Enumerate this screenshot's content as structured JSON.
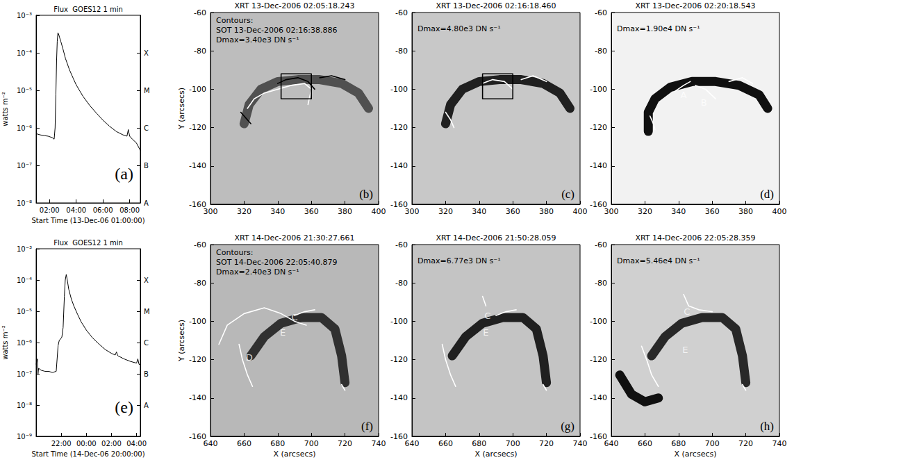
{
  "chart_data": [
    {
      "type": "line",
      "title": "Flux  GOES12 1 min",
      "panel": "(a)",
      "ylabel": "watts m⁻²",
      "xlabel": "Start Time (13-Dec-06 01:00:00)",
      "log": "y",
      "color": "#000000",
      "x": [
        1.0,
        1.3,
        1.6,
        1.9,
        2.2,
        2.35,
        2.42,
        2.48,
        2.53,
        2.58,
        2.63,
        2.68,
        2.75,
        2.85,
        3.0,
        3.2,
        3.5,
        3.8,
        4.0,
        4.5,
        5.0,
        5.5,
        6.0,
        6.5,
        7.0,
        7.5,
        7.8,
        7.9,
        8.0,
        8.2,
        8.5,
        8.8
      ],
      "values": [
        7e-07,
        6.5e-07,
        6.2e-07,
        6e-07,
        5.5e-07,
        5e-07,
        1e-06,
        8e-06,
        6e-05,
        0.0002,
        0.00034,
        0.00032,
        0.00026,
        0.0002,
        0.00013,
        7e-05,
        3.5e-05,
        2e-05,
        1.4e-05,
        7e-06,
        4e-06,
        2.5e-06,
        1.6e-06,
        1.1e-06,
        8e-07,
        6.5e-07,
        6e-07,
        9e-07,
        6e-07,
        5e-07,
        4e-07,
        2.5e-07
      ],
      "xlim": [
        1.0,
        8.8
      ],
      "xticks": [
        {
          "value": 2,
          "label": "02:00"
        },
        {
          "value": 4,
          "label": "04:00"
        },
        {
          "value": 6,
          "label": "06:00"
        },
        {
          "value": 8,
          "label": "08:00"
        }
      ],
      "ylim": [
        1e-08,
        0.001
      ],
      "yticks": [
        {
          "value": 1e-08,
          "label": "10⁻⁸"
        },
        {
          "value": 1e-07,
          "label": "10⁻⁷"
        },
        {
          "value": 1e-06,
          "label": "10⁻⁶"
        },
        {
          "value": 1e-05,
          "label": "10⁻⁵"
        },
        {
          "value": 0.0001,
          "label": "10⁻⁴"
        },
        {
          "value": 0.001,
          "label": "10⁻³"
        }
      ],
      "y2lim": [
        1e-08,
        0.001
      ],
      "y2ticks": [
        {
          "value": 1e-08,
          "label": "A"
        },
        {
          "value": 1e-07,
          "label": "B"
        },
        {
          "value": 1e-06,
          "label": "C"
        },
        {
          "value": 1e-05,
          "label": "M"
        },
        {
          "value": 0.0001,
          "label": "X"
        }
      ]
    },
    {
      "type": "image",
      "title": "XRT 13-Dec-2006 02:05:18.243",
      "panel": "(b)",
      "ylabel": "Y (arcsecs)",
      "annotations": [
        "Contours:",
        "SOT 13-Dec-2006 02:16:38.886",
        "Dmax=3.40e3 DN s⁻¹"
      ],
      "color": "#bdbdbd",
      "xlim": [
        300,
        400
      ],
      "xticks": [
        300,
        320,
        340,
        360,
        380,
        400
      ],
      "ylim": [
        -160,
        -60
      ],
      "yticks": [
        -160,
        -140,
        -120,
        -100,
        -80,
        -60
      ],
      "overlays": [
        {
          "type": "line",
          "line_style": "band",
          "color": "#505050",
          "x": [
            320,
            323,
            330,
            340,
            352,
            365,
            378,
            388,
            394
          ],
          "y": [
            -118,
            -108,
            -100,
            -96,
            -95,
            -95,
            -97,
            -102,
            -110
          ]
        },
        {
          "type": "line",
          "line_style": "solid",
          "color": "#ffffff",
          "x": [
            322,
            326,
            332,
            340,
            348,
            356,
            360,
            358
          ],
          "y": [
            -110,
            -105,
            -102,
            -100,
            -98,
            -97,
            -100,
            -108
          ]
        },
        {
          "type": "line",
          "line_style": "solid",
          "color": "#000000",
          "x": [
            340,
            345,
            352,
            358,
            362
          ],
          "y": [
            -97,
            -95,
            -94,
            -96,
            -100
          ]
        },
        {
          "type": "line",
          "line_style": "solid",
          "color": "#000000",
          "x": [
            365,
            372,
            380
          ],
          "y": [
            -94,
            -93,
            -95
          ]
        },
        {
          "type": "line",
          "line_style": "solid",
          "color": "#000000",
          "x": [
            318,
            322,
            324
          ],
          "y": [
            -112,
            -116,
            -118
          ]
        },
        {
          "type": "line",
          "line_style": "solid",
          "color": "#000000",
          "x": [
            342,
            360,
            360,
            342,
            342
          ],
          "y": [
            -105,
            -105,
            -92,
            -92,
            -105
          ]
        }
      ],
      "labels": []
    },
    {
      "type": "image",
      "title": "XRT 13-Dec-2006 02:16:18.460",
      "panel": "(c)",
      "annotations": [
        "Dmax=4.80e3 DN s⁻¹"
      ],
      "color": "#c8c8c8",
      "xlim": [
        300,
        400
      ],
      "xticks": [
        300,
        320,
        340,
        360,
        380,
        400
      ],
      "ylim": [
        -160,
        -60
      ],
      "yticks": [
        -160,
        -140,
        -120,
        -100,
        -80,
        -60
      ],
      "overlays": [
        {
          "type": "line",
          "line_style": "band",
          "color": "#202020",
          "x": [
            320,
            323,
            330,
            340,
            352,
            365,
            378,
            388,
            394
          ],
          "y": [
            -118,
            -108,
            -100,
            -96,
            -95,
            -95,
            -97,
            -102,
            -110
          ]
        },
        {
          "type": "line",
          "line_style": "solid",
          "color": "#ffffff",
          "x": [
            320,
            323,
            325
          ],
          "y": [
            -112,
            -116,
            -120
          ]
        },
        {
          "type": "line",
          "line_style": "solid",
          "color": "#ffffff",
          "x": [
            342,
            348,
            355,
            360
          ],
          "y": [
            -97,
            -95,
            -96,
            -100
          ]
        },
        {
          "type": "line",
          "line_style": "solid",
          "color": "#ffffff",
          "x": [
            365,
            372,
            380
          ],
          "y": [
            -95,
            -93,
            -96
          ]
        },
        {
          "type": "line",
          "line_style": "solid",
          "color": "#000000",
          "x": [
            342,
            360,
            360,
            342,
            342
          ],
          "y": [
            -105,
            -105,
            -92,
            -92,
            -105
          ]
        }
      ],
      "labels": []
    },
    {
      "type": "image",
      "title": "XRT 13-Dec-2006 02:20:18.543",
      "panel": "(d)",
      "annotations": [
        "Dmax=1.90e4 DN s⁻¹"
      ],
      "color": "#f2f2f2",
      "xlim": [
        300,
        400
      ],
      "xticks": [
        300,
        320,
        340,
        360,
        380,
        400
      ],
      "ylim": [
        -160,
        -60
      ],
      "yticks": [
        -160,
        -140,
        -120,
        -100,
        -80,
        -60
      ],
      "overlays": [
        {
          "type": "line",
          "line_style": "band",
          "color": "#101010",
          "x": [
            322,
            322,
            326,
            335,
            348,
            362,
            376,
            388,
            393
          ],
          "y": [
            -122,
            -112,
            -105,
            -99,
            -96,
            -96,
            -98,
            -103,
            -110
          ]
        },
        {
          "type": "line",
          "line_style": "solid",
          "color": "#ffffff",
          "x": [
            338,
            343,
            347
          ],
          "y": [
            -101,
            -98,
            -96
          ]
        },
        {
          "type": "line",
          "line_style": "solid",
          "color": "#ffffff",
          "x": [
            350,
            356,
            362
          ],
          "y": [
            -98,
            -100,
            -105
          ]
        },
        {
          "type": "line",
          "line_style": "solid",
          "color": "#ffffff",
          "x": [
            323,
            325,
            326
          ],
          "y": [
            -114,
            -118,
            -121
          ]
        },
        {
          "type": "line",
          "line_style": "solid",
          "color": "#ffffff",
          "x": [
            370,
            378,
            384
          ],
          "y": [
            -96,
            -94,
            -97
          ]
        }
      ],
      "labels": [
        {
          "text": "A",
          "x": 343,
          "y": -103
        },
        {
          "text": "B",
          "x": 355,
          "y": -107
        }
      ]
    },
    {
      "type": "line",
      "title": "Flux  GOES12 1 min",
      "panel": "(e)",
      "ylabel": "watts m⁻²",
      "xlabel": "Start Time (14-Dec-06 20:00:00)",
      "log": "y",
      "color": "#000000",
      "x": [
        0,
        0.1,
        0.15,
        0.2,
        0.4,
        0.7,
        1.0,
        1.3,
        1.6,
        1.75,
        1.85,
        1.95,
        2.05,
        2.15,
        2.25,
        2.32,
        2.4,
        2.5,
        2.6,
        2.8,
        3.0,
        3.3,
        3.6,
        4.0,
        4.5,
        5.0,
        5.5,
        6.0,
        6.3,
        6.4,
        6.5,
        7.0,
        7.5,
        8.0,
        8.1,
        8.2,
        8.3
      ],
      "values": [
        2e-07,
        3e-07,
        1e-07,
        1.5e-07,
        1.3e-07,
        1.2e-07,
        1.2e-07,
        1.1e-07,
        1.2e-07,
        8e-07,
        1.2e-06,
        1.3e-06,
        1.5e-06,
        3e-06,
        3e-05,
        0.0001,
        0.00015,
        9e-05,
        5e-05,
        2.5e-05,
        1.5e-05,
        8e-06,
        4.5e-06,
        2.5e-06,
        1.4e-06,
        9e-07,
        6e-07,
        4.5e-07,
        4e-07,
        5e-07,
        3.8e-07,
        3e-07,
        2.5e-07,
        2.2e-07,
        3e-07,
        2e-07,
        2e-07
      ],
      "xlim": [
        0,
        8.3
      ],
      "xticks": [
        {
          "value": 2,
          "label": "22:00"
        },
        {
          "value": 4,
          "label": "00:00"
        },
        {
          "value": 6,
          "label": "02:00"
        },
        {
          "value": 8,
          "label": "04:00"
        }
      ],
      "ylim": [
        1e-09,
        0.001
      ],
      "yticks": [
        {
          "value": 1e-09,
          "label": "10⁻⁹"
        },
        {
          "value": 1e-08,
          "label": "10⁻⁸"
        },
        {
          "value": 1e-07,
          "label": "10⁻⁷"
        },
        {
          "value": 1e-06,
          "label": "10⁻⁶"
        },
        {
          "value": 1e-05,
          "label": "10⁻⁵"
        },
        {
          "value": 0.0001,
          "label": "10⁻⁴"
        },
        {
          "value": 0.001,
          "label": "10⁻³"
        }
      ],
      "y2lim": [
        1e-09,
        0.001
      ],
      "y2ticks": [
        {
          "value": 1e-08,
          "label": "A"
        },
        {
          "value": 1e-07,
          "label": "B"
        },
        {
          "value": 1e-06,
          "label": "C"
        },
        {
          "value": 1e-05,
          "label": "M"
        },
        {
          "value": 0.0001,
          "label": "X"
        }
      ]
    },
    {
      "type": "image",
      "title": "XRT 14-Dec-2006 21:30:27.661",
      "panel": "(f)",
      "ylabel": "Y (arcsecs)",
      "xlabel": "X (arcsecs)",
      "annotations": [
        "Contours:",
        "SOT 14-Dec-2006 22:05:40.879",
        "Dmax=2.40e3 DN s⁻¹"
      ],
      "color": "#b8b8b8",
      "xlim": [
        640,
        740
      ],
      "xticks": [
        640,
        660,
        680,
        700,
        720,
        740
      ],
      "ylim": [
        -160,
        -60
      ],
      "yticks": [
        -160,
        -140,
        -120,
        -100,
        -80,
        -60
      ],
      "overlays": [
        {
          "type": "line",
          "line_style": "band",
          "color": "#303030",
          "x": [
            664,
            672,
            682,
            694,
            706,
            714,
            718,
            720
          ],
          "y": [
            -118,
            -108,
            -101,
            -98,
            -98,
            -104,
            -118,
            -132
          ]
        },
        {
          "type": "line",
          "line_style": "solid",
          "color": "#ffffff",
          "x": [
            645,
            650,
            660,
            672,
            682,
            690,
            697
          ],
          "y": [
            -112,
            -102,
            -96,
            -93,
            -96,
            -100,
            -102
          ]
        },
        {
          "type": "line",
          "line_style": "solid",
          "color": "#ffffff",
          "x": [
            657,
            659,
            662,
            665
          ],
          "y": [
            -112,
            -120,
            -128,
            -134
          ]
        },
        {
          "type": "line",
          "line_style": "solid",
          "color": "#ffffff",
          "x": [
            690,
            696,
            702
          ],
          "y": [
            -97,
            -95,
            -94
          ]
        },
        {
          "type": "line",
          "line_style": "solid",
          "color": "#ffffff",
          "x": [
            718,
            720
          ],
          "y": [
            -133,
            -136
          ]
        }
      ],
      "labels": [
        {
          "text": "C",
          "x": 690,
          "y": -98
        },
        {
          "text": "E",
          "x": 683,
          "y": -106
        },
        {
          "text": "D",
          "x": 663,
          "y": -119
        }
      ]
    },
    {
      "type": "image",
      "title": "XRT 14-Dec-2006 21:50:28.059",
      "panel": "(g)",
      "xlabel": "X (arcsecs)",
      "annotations": [
        "Dmax=6.77e3 DN s⁻¹"
      ],
      "color": "#c4c4c4",
      "xlim": [
        640,
        740
      ],
      "xticks": [
        640,
        660,
        680,
        700,
        720,
        740
      ],
      "ylim": [
        -160,
        -60
      ],
      "yticks": [
        -160,
        -140,
        -120,
        -100,
        -80,
        -60
      ],
      "overlays": [
        {
          "type": "line",
          "line_style": "band",
          "color": "#202020",
          "x": [
            664,
            672,
            682,
            694,
            706,
            714,
            718,
            720
          ],
          "y": [
            -118,
            -108,
            -101,
            -98,
            -98,
            -104,
            -118,
            -132
          ]
        },
        {
          "type": "line",
          "line_style": "solid",
          "color": "#ffffff",
          "x": [
            658,
            660,
            663,
            666
          ],
          "y": [
            -112,
            -120,
            -128,
            -134
          ]
        },
        {
          "type": "line",
          "line_style": "solid",
          "color": "#ffffff",
          "x": [
            682,
            684
          ],
          "y": [
            -87,
            -92
          ]
        },
        {
          "type": "line",
          "line_style": "solid",
          "color": "#ffffff",
          "x": [
            690,
            696,
            702
          ],
          "y": [
            -97,
            -95,
            -94
          ]
        },
        {
          "type": "line",
          "line_style": "solid",
          "color": "#ffffff",
          "x": [
            718,
            720
          ],
          "y": [
            -133,
            -136
          ]
        }
      ],
      "labels": [
        {
          "text": "C",
          "x": 685,
          "y": -97
        },
        {
          "text": "E",
          "x": 684,
          "y": -106
        }
      ]
    },
    {
      "type": "image",
      "title": "XRT 14-Dec-2006 22:05:28.359",
      "panel": "(h)",
      "xlabel": "X (arcsecs)",
      "annotations": [
        "Dmax=5.46e4 DN s⁻¹"
      ],
      "color": "#d0d0d0",
      "xlim": [
        640,
        740
      ],
      "xticks": [
        640,
        660,
        680,
        700,
        720,
        740
      ],
      "ylim": [
        -160,
        -60
      ],
      "yticks": [
        -160,
        -140,
        -120,
        -100,
        -80,
        -60
      ],
      "overlays": [
        {
          "type": "line",
          "line_style": "band",
          "color": "#282828",
          "x": [
            664,
            672,
            682,
            694,
            706,
            714,
            718,
            720
          ],
          "y": [
            -118,
            -108,
            -101,
            -98,
            -98,
            -104,
            -118,
            -132
          ]
        },
        {
          "type": "line",
          "line_style": "band",
          "color": "#101010",
          "x": [
            645,
            652,
            660,
            668
          ],
          "y": [
            -128,
            -138,
            -142,
            -140
          ]
        },
        {
          "type": "line",
          "line_style": "solid",
          "color": "#ffffff",
          "x": [
            658,
            661,
            664,
            668
          ],
          "y": [
            -113,
            -120,
            -128,
            -134
          ]
        },
        {
          "type": "line",
          "line_style": "solid",
          "color": "#ffffff",
          "x": [
            683,
            686,
            692,
            700
          ],
          "y": [
            -86,
            -92,
            -94,
            -95
          ]
        },
        {
          "type": "line",
          "line_style": "solid",
          "color": "#ffffff",
          "x": [
            718,
            720
          ],
          "y": [
            -133,
            -136
          ]
        }
      ],
      "labels": [
        {
          "text": "C",
          "x": 685,
          "y": -95
        },
        {
          "text": "E",
          "x": 684,
          "y": -115
        }
      ]
    }
  ]
}
